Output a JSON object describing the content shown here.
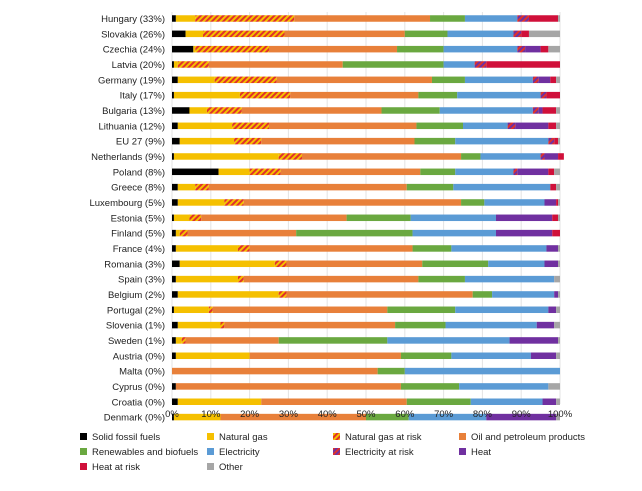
{
  "chart_data": {
    "type": "bar",
    "orientation": "horizontal",
    "stacked": true,
    "xlim": [
      0,
      100
    ],
    "ticks": [
      "0%",
      "10%",
      "20%",
      "30%",
      "40%",
      "50%",
      "60%",
      "70%",
      "80%",
      "90%",
      "100%"
    ],
    "legend_position": "bottom",
    "categories": [
      "Hungary (33%)",
      "Slovakia (26%)",
      "Czechia (24%)",
      "Latvia (20%)",
      "Germany (19%)",
      "Italy (17%)",
      "Bulgaria (13%)",
      "Lithuania (12%)",
      "EU 27 (9%)",
      "Netherlands (9%)",
      "Poland (8%)",
      "Greece (8%)",
      "Luxembourg (5%)",
      "Estonia (5%)",
      "Finland (5%)",
      "France (4%)",
      "Romania (3%)",
      "Spain (3%)",
      "Belgium (2%)",
      "Portugal (2%)",
      "Slovenia (1%)",
      "Sweden (1%)",
      "Austria (0%)",
      "Malta (0%)",
      "Cyprus (0%)",
      "Croatia (0%)",
      "Denmark (0%)"
    ],
    "series": [
      {
        "name": "Solid fossil fuels",
        "color": "#000000",
        "pattern": "solid",
        "values": [
          1,
          3.5,
          5.5,
          0.5,
          1.5,
          0.5,
          4.5,
          1.5,
          2,
          0.5,
          12,
          1.5,
          1.5,
          0.5,
          1,
          1,
          2,
          1,
          1.5,
          0.5,
          1.5,
          1,
          1,
          0,
          1,
          1.5,
          0.5
        ]
      },
      {
        "name": "Natural gas",
        "color": "#f5c000",
        "pattern": "solid",
        "values": [
          5,
          4.5,
          0.5,
          1,
          9.5,
          17,
          4.5,
          14,
          14,
          27,
          8,
          4.5,
          12,
          4,
          1,
          16,
          24.5,
          16,
          26,
          9,
          11,
          1.5,
          19,
          0,
          0,
          21.5,
          12
        ]
      },
      {
        "name": "Natural gas at risk",
        "color": "#f5c000",
        "pattern": "hatch",
        "hatchColor": "#e0312a",
        "values": [
          25.5,
          21,
          19,
          8,
          16,
          13,
          9,
          9.5,
          7,
          6,
          8,
          3.5,
          5,
          3,
          2,
          3,
          3,
          1.5,
          2,
          1,
          1,
          1,
          0,
          0,
          0,
          0,
          0
        ]
      },
      {
        "name": "Oil and petroleum products",
        "color": "#e8803a",
        "pattern": "solid",
        "values": [
          35,
          31,
          33,
          34.5,
          40,
          33,
          36,
          38,
          39.5,
          41,
          36,
          51,
          56,
          37.5,
          28,
          42,
          35,
          45,
          48,
          45,
          44,
          24,
          39,
          53,
          58,
          37.5,
          37.5
        ]
      },
      {
        "name": "Renewables and biofuels",
        "color": "#6aa840",
        "pattern": "solid",
        "values": [
          9,
          11,
          12,
          26,
          8.5,
          10,
          15,
          12,
          10.5,
          5,
          9,
          12,
          6,
          16.5,
          30,
          10,
          17,
          12,
          5,
          17.5,
          13,
          28,
          13,
          7,
          15,
          16.5,
          11
        ]
      },
      {
        "name": "Electricity",
        "color": "#5b9bd5",
        "pattern": "solid",
        "values": [
          13.5,
          17,
          19,
          8,
          17.5,
          21.5,
          24,
          11.5,
          24,
          15.5,
          15,
          25,
          15.5,
          22,
          21.5,
          24.5,
          14.5,
          23,
          16,
          24,
          23.5,
          31.5,
          20.5,
          40,
          23,
          18.5,
          20
        ]
      },
      {
        "name": "Electricity at risk",
        "color": "#7030a0",
        "pattern": "hatch",
        "hatchColor": "#e0312a",
        "values": [
          3,
          2,
          2,
          3,
          1.5,
          1.5,
          1.5,
          2,
          1.5,
          1,
          1,
          0,
          0,
          0,
          0,
          0,
          0,
          0,
          0,
          0,
          0,
          0,
          0,
          0,
          0,
          0,
          0
        ]
      },
      {
        "name": "Heat",
        "color": "#7030a0",
        "pattern": "solid",
        "values": [
          0,
          0,
          4,
          0,
          3,
          0,
          1,
          8.5,
          0,
          3.5,
          8,
          0,
          3,
          14.5,
          14.5,
          3,
          3.5,
          0,
          1,
          2,
          4.5,
          12.5,
          6.5,
          0,
          0,
          3.5,
          18
        ]
      },
      {
        "name": "Heat at risk",
        "color": "#d0103a",
        "pattern": "solid",
        "values": [
          7.5,
          2,
          2,
          19,
          1.5,
          3.5,
          3.5,
          2,
          1,
          1.5,
          1.5,
          1.5,
          0.5,
          1.5,
          2,
          0,
          0,
          0,
          0,
          0,
          0,
          0,
          0,
          0,
          0,
          0,
          0
        ]
      },
      {
        "name": "Other",
        "color": "#a6a6a6",
        "pattern": "solid",
        "values": [
          0.5,
          8,
          3,
          0,
          1,
          0,
          1,
          1,
          0.5,
          0,
          1.5,
          1,
          0.5,
          0.5,
          0,
          0.5,
          0.5,
          1.5,
          0.5,
          1,
          1.5,
          0.5,
          1,
          0,
          3,
          1,
          1
        ]
      }
    ]
  }
}
